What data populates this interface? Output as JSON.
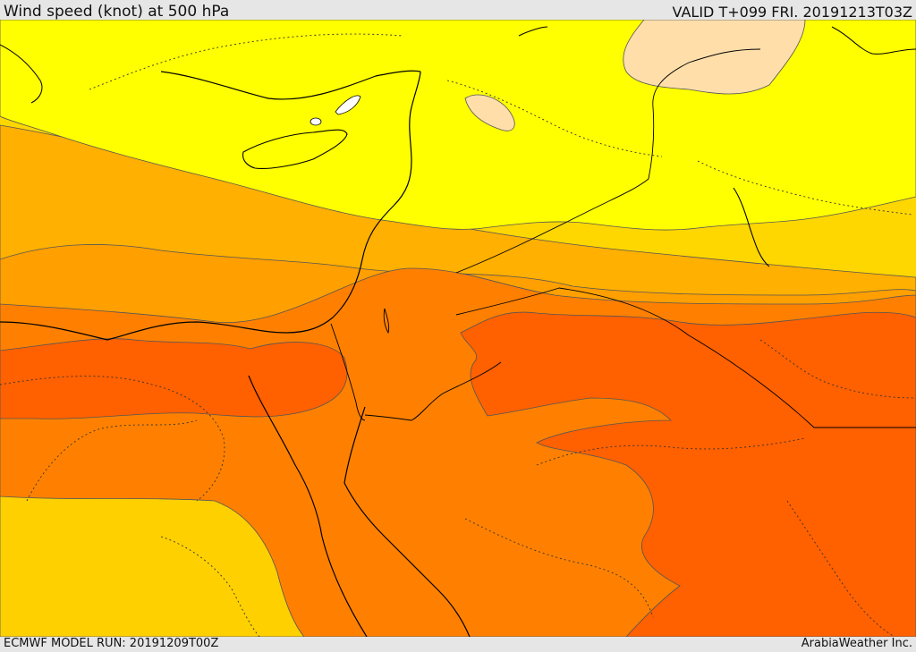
{
  "header": {
    "title": "Wind speed (knot) at 500 hPa",
    "valid": "VALID T+099 FRI. 20191213T03Z"
  },
  "footer": {
    "model_run": "ECMWF MODEL RUN: 20191209T00Z",
    "credit": "ArabiaWeather Inc."
  },
  "colors": {
    "band_pale": "#ffdeaa",
    "band_yellow": "#ffff00",
    "band_gold": "#ffd700",
    "band_amber": "#ffb000",
    "band_orange_light": "#ff9f00",
    "band_orange": "#ff8000",
    "band_orange_dark": "#ff6000",
    "contour": "#555555",
    "coast": "#000000"
  }
}
